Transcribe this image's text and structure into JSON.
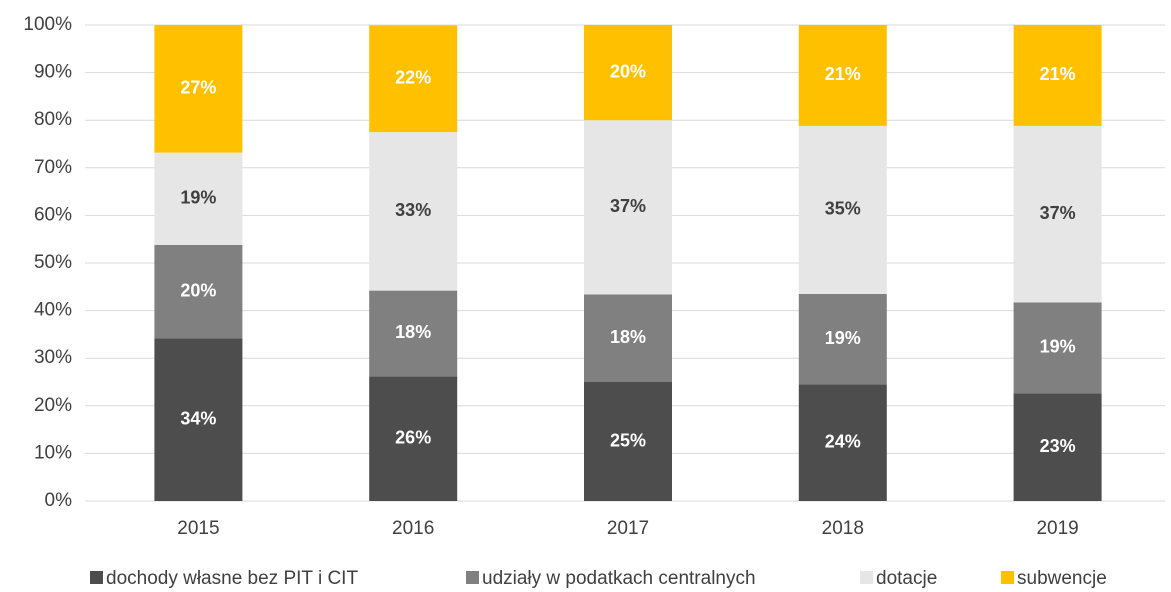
{
  "chart_data": {
    "type": "stacked_bar",
    "categories": [
      "2015",
      "2016",
      "2017",
      "2018",
      "2019"
    ],
    "series": [
      {
        "name": "dochody własne bez PIT i CIT",
        "color": "#4d4d4d",
        "label_color": "#ffffff",
        "values": [
          34.2,
          26.2,
          25.0,
          24.5,
          22.6
        ],
        "value_labels": [
          "34%",
          "26%",
          "25%",
          "24%",
          "23%"
        ]
      },
      {
        "name": "udziały w podatkach centralnych",
        "color": "#808080",
        "label_color": "#ffffff",
        "values": [
          19.6,
          18.0,
          18.4,
          19.0,
          19.1
        ],
        "value_labels": [
          "20%",
          "18%",
          "18%",
          "19%",
          "19%"
        ]
      },
      {
        "name": "dotacje",
        "color": "#e6e6e6",
        "label_color": "#404040",
        "values": [
          19.4,
          33.3,
          36.6,
          35.3,
          37.1
        ],
        "value_labels": [
          "19%",
          "33%",
          "37%",
          "35%",
          "37%"
        ]
      },
      {
        "name": "subwencje",
        "color": "#ffc000",
        "label_color": "#ffffff",
        "values": [
          26.8,
          22.4,
          20.0,
          21.2,
          21.2
        ],
        "value_labels": [
          "27%",
          "22%",
          "20%",
          "21%",
          "21%"
        ]
      }
    ],
    "ylim": [
      0,
      100
    ],
    "yticks": [
      {
        "value": 0,
        "label": "0%"
      },
      {
        "value": 10,
        "label": "10%"
      },
      {
        "value": 20,
        "label": "20%"
      },
      {
        "value": 30,
        "label": "30%"
      },
      {
        "value": 40,
        "label": "40%"
      },
      {
        "value": 50,
        "label": "50%"
      },
      {
        "value": 60,
        "label": "60%"
      },
      {
        "value": 70,
        "label": "70%"
      },
      {
        "value": 80,
        "label": "80%"
      },
      {
        "value": 90,
        "label": "90%"
      },
      {
        "value": 100,
        "label": "100%"
      }
    ],
    "grid": true,
    "legend": "bottom"
  }
}
